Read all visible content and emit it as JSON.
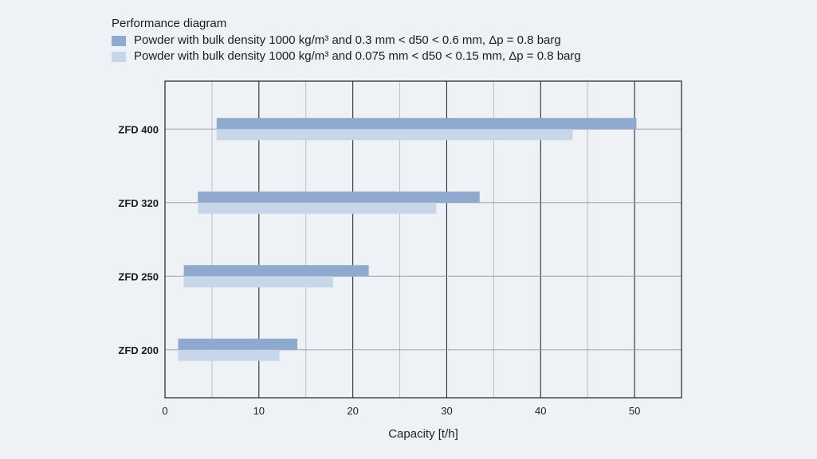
{
  "chart_data": {
    "type": "bar",
    "orientation": "horizontal",
    "title": "Performance diagram",
    "xlabel": "Capacity [t/h]",
    "ylabel": "",
    "xlim": [
      0,
      55
    ],
    "x_ticks": [
      0,
      10,
      20,
      30,
      40,
      50
    ],
    "grid": true,
    "legend_position": "top-left",
    "categories": [
      "ZFD 400",
      "ZFD 320",
      "ZFD 250",
      "ZFD 200"
    ],
    "series": [
      {
        "name": "Powder with bulk density 1000 kg/m³ and 0.3 mm < d50 < 0.6 mm, Δp = 0.8 barg",
        "color": "#8fa9cf",
        "ranges": [
          [
            5.5,
            50.2
          ],
          [
            3.5,
            33.5
          ],
          [
            2.0,
            21.7
          ],
          [
            1.4,
            14.1
          ]
        ]
      },
      {
        "name": "Powder with bulk density 1000 kg/m³ and 0.075 mm < d50 < 0.15 mm, Δp = 0.8 barg",
        "color": "#c8d6ea",
        "ranges": [
          [
            5.5,
            43.4
          ],
          [
            3.5,
            28.9
          ],
          [
            2.0,
            17.9
          ],
          [
            1.4,
            12.2
          ]
        ]
      }
    ]
  }
}
